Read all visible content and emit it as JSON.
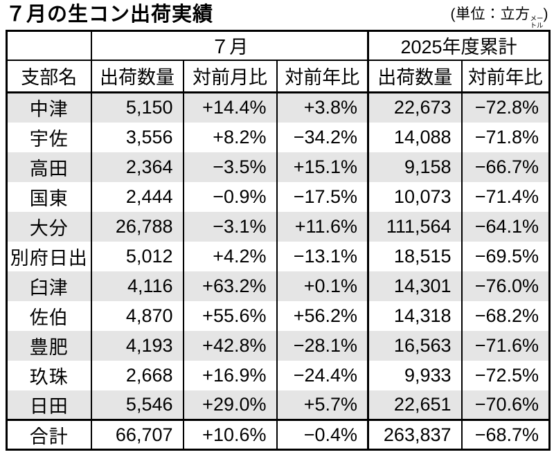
{
  "title": "７月の生コン出荷実績",
  "unit_note": {
    "prefix": "(単位：立方",
    "unit_top": "メー",
    "unit_bottom": "トル",
    "suffix": ")"
  },
  "table": {
    "header_groups": [
      {
        "label": "",
        "colspan": 1
      },
      {
        "label": "７月",
        "colspan": 3
      },
      {
        "label": "2025年度累計",
        "colspan": 2
      }
    ],
    "columns": [
      "支部名",
      "出荷数量",
      "対前月比",
      "対前年比",
      "出荷数量",
      "対前年比"
    ],
    "rows": [
      {
        "name": "中津",
        "july_qty": "5,150",
        "mom": "+14.4%",
        "yoy": "+3.8%",
        "cum_qty": "22,673",
        "cum_yoy": "−72.8%"
      },
      {
        "name": "宇佐",
        "july_qty": "3,556",
        "mom": "+8.2%",
        "yoy": "−34.2%",
        "cum_qty": "14,088",
        "cum_yoy": "−71.8%"
      },
      {
        "name": "高田",
        "july_qty": "2,364",
        "mom": "−3.5%",
        "yoy": "+15.1%",
        "cum_qty": "9,158",
        "cum_yoy": "−66.7%"
      },
      {
        "name": "国東",
        "july_qty": "2,444",
        "mom": "−0.9%",
        "yoy": "−17.5%",
        "cum_qty": "10,073",
        "cum_yoy": "−71.4%"
      },
      {
        "name": "大分",
        "july_qty": "26,788",
        "mom": "−3.1%",
        "yoy": "+11.6%",
        "cum_qty": "111,564",
        "cum_yoy": "−64.1%"
      },
      {
        "name": "別府日出",
        "july_qty": "5,012",
        "mom": "+4.2%",
        "yoy": "−13.1%",
        "cum_qty": "18,515",
        "cum_yoy": "−69.5%"
      },
      {
        "name": "臼津",
        "july_qty": "4,116",
        "mom": "+63.2%",
        "yoy": "+0.1%",
        "cum_qty": "14,301",
        "cum_yoy": "−76.0%"
      },
      {
        "name": "佐伯",
        "july_qty": "4,870",
        "mom": "+55.6%",
        "yoy": "+56.2%",
        "cum_qty": "14,318",
        "cum_yoy": "−68.2%"
      },
      {
        "name": "豊肥",
        "july_qty": "4,193",
        "mom": "+42.8%",
        "yoy": "−28.1%",
        "cum_qty": "16,563",
        "cum_yoy": "−71.6%"
      },
      {
        "name": "玖珠",
        "july_qty": "2,668",
        "mom": "+16.9%",
        "yoy": "−24.4%",
        "cum_qty": "9,933",
        "cum_yoy": "−72.5%"
      },
      {
        "name": "日田",
        "july_qty": "5,546",
        "mom": "+29.0%",
        "yoy": "+5.7%",
        "cum_qty": "22,651",
        "cum_yoy": "−70.6%"
      }
    ],
    "total_row": {
      "name": "合計",
      "july_qty": "66,707",
      "mom": "+10.6%",
      "yoy": "−0.4%",
      "cum_qty": "263,837",
      "cum_yoy": "−68.7%"
    }
  },
  "colors": {
    "row_alt": "#e5e5e5",
    "border": "#000000",
    "background": "#ffffff"
  }
}
